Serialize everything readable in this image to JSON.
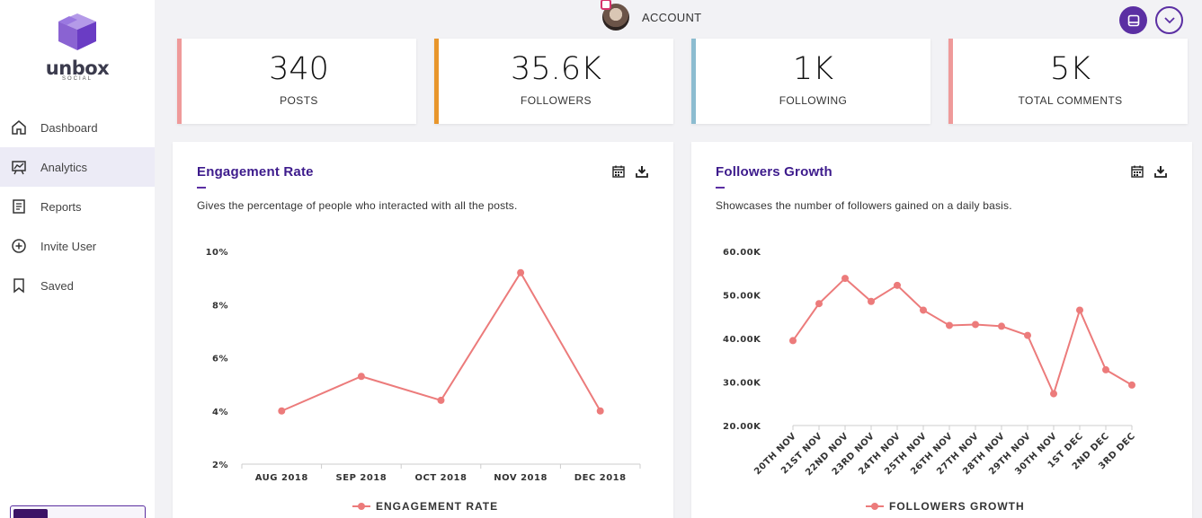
{
  "brand": {
    "name": "unbox",
    "sub": "SOCIAL"
  },
  "sidebar": {
    "items": [
      {
        "label": "Dashboard",
        "icon": "home-icon"
      },
      {
        "label": "Analytics",
        "icon": "analytics-icon",
        "active": true
      },
      {
        "label": "Reports",
        "icon": "reports-icon"
      },
      {
        "label": "Invite User",
        "icon": "add-circle-icon"
      },
      {
        "label": "Saved",
        "icon": "bookmark-icon"
      }
    ]
  },
  "header": {
    "account_label": "ACCOUNT"
  },
  "stats": [
    {
      "value": "340",
      "label": "POSTS",
      "color": "#ef9a9a"
    },
    {
      "value": "35.6K",
      "label": "FOLLOWERS",
      "color": "#e8962c"
    },
    {
      "value": "1K",
      "label": "FOLLOWING",
      "color": "#8cbcd0"
    },
    {
      "value": "5K",
      "label": "TOTAL COMMENTS",
      "color": "#ef9a9a"
    }
  ],
  "colors": {
    "accent": "#5b2fa3",
    "title": "#3d1b8c",
    "line": "#ec7b7b"
  },
  "engagement": {
    "title": "Engagement Rate",
    "description": "Gives the percentage of people who interacted with all the posts."
  },
  "followers": {
    "title": "Followers Growth",
    "description": "Showcases the number of followers gained on a daily basis."
  },
  "chart_data": [
    {
      "type": "line",
      "title": "Engagement Rate",
      "categories": [
        "AUG 2018",
        "SEP 2018",
        "OCT 2018",
        "NOV 2018",
        "DEC 2018"
      ],
      "series": [
        {
          "name": "ENGAGEMENT RATE",
          "values": [
            4.0,
            5.3,
            4.4,
            9.2,
            4.0
          ]
        }
      ],
      "ylim": [
        2,
        10
      ],
      "yticks": [
        "2%",
        "4%",
        "6%",
        "8%",
        "10%"
      ],
      "legend": "bottom"
    },
    {
      "type": "line",
      "title": "Followers Growth",
      "categories": [
        "20TH NOV",
        "21ST NOV",
        "22ND NOV",
        "23RD NOV",
        "24TH NOV",
        "25TH NOV",
        "26TH NOV",
        "27TH NOV",
        "28TH NOV",
        "29TH NOV",
        "30TH NOV",
        "1ST DEC",
        "2ND DEC",
        "3RD DEC"
      ],
      "series": [
        {
          "name": "FOLLOWERS GROWTH",
          "values": [
            39500,
            48000,
            53800,
            48500,
            52200,
            46500,
            43000,
            43200,
            42800,
            40700,
            27300,
            46500,
            32800,
            29300
          ]
        }
      ],
      "ylim": [
        20000,
        60000
      ],
      "yticks": [
        "20.00K",
        "30.00K",
        "40.00K",
        "50.00K",
        "60.00K"
      ],
      "legend": "bottom"
    }
  ]
}
